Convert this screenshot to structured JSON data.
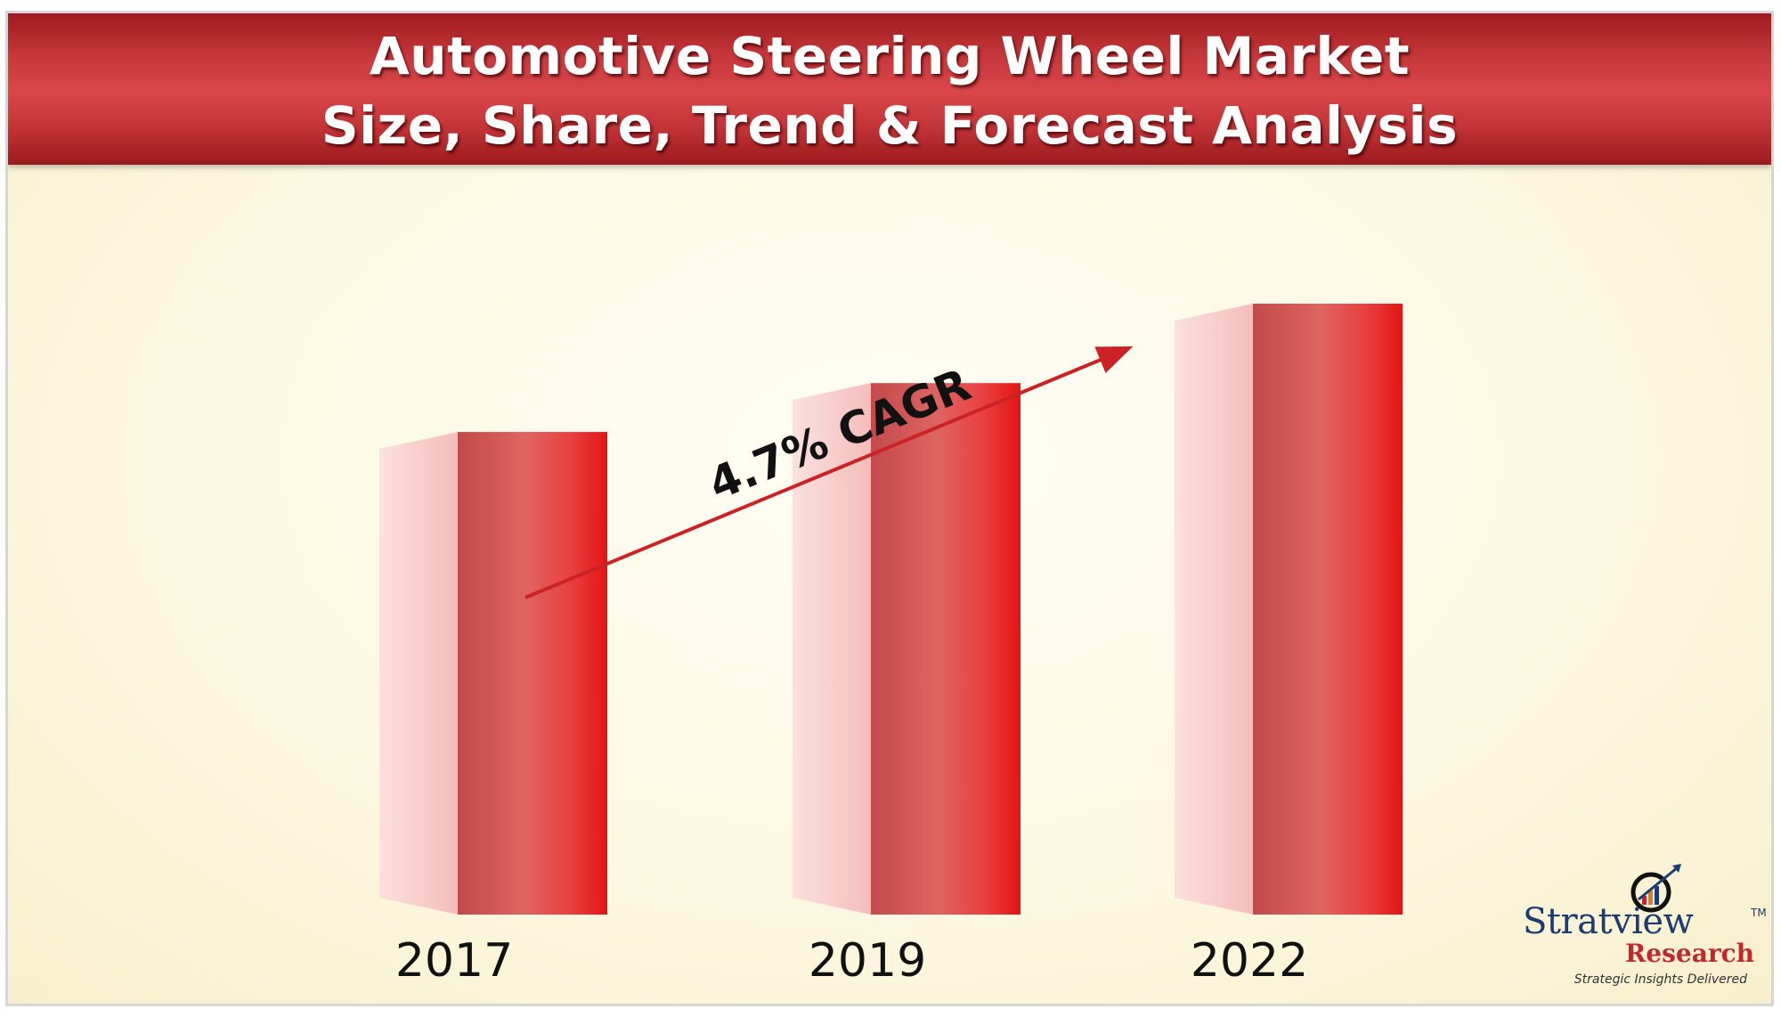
{
  "title": {
    "line1": "Automotive Steering Wheel Market",
    "line2": "Size, Share, Trend & Forecast Analysis"
  },
  "chart_data": {
    "type": "bar",
    "categories": [
      "2017",
      "2019",
      "2022"
    ],
    "values": [
      0.79,
      0.87,
      1.0
    ],
    "value_scale": "relative heights only; no values are printed",
    "annotation": "4.7% CAGR",
    "grid": false,
    "legend": "none"
  },
  "colors": {
    "banner": "#c8393c",
    "bar_front": "#e0292c",
    "bar_side": "#f6c6c4",
    "arrow": "#cc2226"
  },
  "logo": {
    "name": "Stratview",
    "trademark": "TM",
    "sub": "Research",
    "tagline": "Strategic Insights Delivered"
  }
}
